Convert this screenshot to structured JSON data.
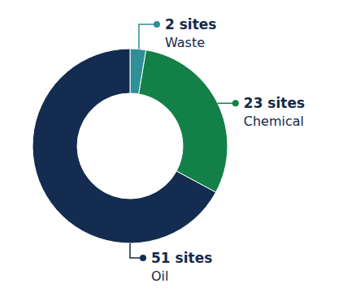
{
  "chart_data": {
    "type": "donut",
    "categories": [
      "Waste",
      "Chemical",
      "Oil"
    ],
    "values": [
      2,
      23,
      51
    ],
    "value_labels": [
      "2 sites",
      "23 sites",
      "51 sites"
    ],
    "colors": [
      "#2e8f97",
      "#138048",
      "#132c4f"
    ],
    "data_labels": true
  }
}
